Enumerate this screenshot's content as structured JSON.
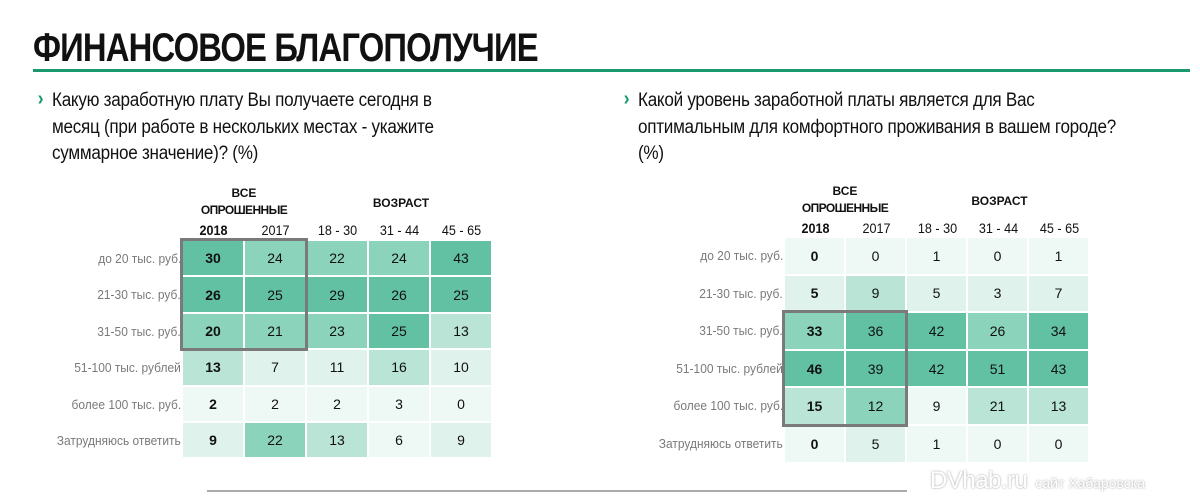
{
  "title": "ФИНАНСОВОЕ БЛАГОПОЛУЧИЕ",
  "accent": "#1a9a6c",
  "shade_colors": [
    "#eef8f4",
    "#dff2ec",
    "#b9e4d6",
    "#8bd3bb",
    "#62c1a3"
  ],
  "tables": [
    {
      "question": [
        "Какую заработную плату Вы получаете сегодня в",
        "месяц (при работе в нескольких местах - укажите",
        "суммарное значение)? (%)"
      ],
      "group_all": [
        "ВСЕ",
        "ОПРОШЕННЫЕ"
      ],
      "group_age": "ВОЗРАСТ",
      "columns": [
        "2018",
        "2017",
        "18 - 30",
        "31 - 44",
        "45 - 65"
      ],
      "rows": [
        {
          "label": "до 20 тыс. руб.",
          "values": [
            "30",
            "24",
            "22",
            "24",
            "43"
          ],
          "shade": [
            4,
            3,
            3,
            3,
            4
          ]
        },
        {
          "label": "21-30 тыс. руб.",
          "values": [
            "26",
            "25",
            "29",
            "26",
            "25"
          ],
          "shade": [
            4,
            4,
            4,
            4,
            4
          ]
        },
        {
          "label": "31-50 тыс. руб.",
          "values": [
            "20",
            "21",
            "23",
            "25",
            "13"
          ],
          "shade": [
            3,
            3,
            3,
            4,
            2
          ]
        },
        {
          "label": "51-100 тыс. рублей",
          "values": [
            "13",
            "7",
            "11",
            "16",
            "10"
          ],
          "shade": [
            2,
            1,
            1,
            2,
            1
          ]
        },
        {
          "label": "более 100 тыс. руб.",
          "values": [
            "2",
            "2",
            "2",
            "3",
            "0"
          ],
          "shade": [
            0,
            0,
            0,
            0,
            0
          ]
        },
        {
          "label": "Затрудняюсь ответить",
          "values": [
            "9",
            "22",
            "13",
            "6",
            "9"
          ],
          "shade": [
            1,
            3,
            2,
            0,
            1
          ]
        }
      ],
      "highlight_rows": [
        0,
        2
      ]
    },
    {
      "question": [
        "Какой уровень заработной платы является для Вас",
        "оптимальным для комфортного проживания в вашем городе?",
        "(%)"
      ],
      "group_all": [
        "ВСЕ",
        "ОПРОШЕННЫЕ"
      ],
      "group_age": "ВОЗРАСТ",
      "columns": [
        "2018",
        "2017",
        "18 - 30",
        "31 - 44",
        "45 - 65"
      ],
      "rows": [
        {
          "label": "до 20 тыс. руб.",
          "values": [
            "0",
            "0",
            "1",
            "0",
            "1"
          ],
          "shade": [
            0,
            0,
            0,
            0,
            0
          ]
        },
        {
          "label": "21-30 тыс. руб.",
          "values": [
            "5",
            "9",
            "5",
            "3",
            "7"
          ],
          "shade": [
            1,
            2,
            1,
            1,
            1
          ]
        },
        {
          "label": "31-50 тыс. руб.",
          "values": [
            "33",
            "36",
            "42",
            "26",
            "34"
          ],
          "shade": [
            3,
            4,
            4,
            3,
            4
          ]
        },
        {
          "label": "51-100 тыс. рублей",
          "values": [
            "46",
            "39",
            "42",
            "51",
            "43"
          ],
          "shade": [
            4,
            4,
            4,
            4,
            4
          ]
        },
        {
          "label": "более 100 тыс. руб.",
          "values": [
            "15",
            "12",
            "9",
            "21",
            "13"
          ],
          "shade": [
            2,
            3,
            0,
            2,
            2
          ]
        },
        {
          "label": "Затрудняюсь ответить",
          "values": [
            "0",
            "5",
            "1",
            "0",
            "0"
          ],
          "shade": [
            0,
            1,
            0,
            0,
            0
          ]
        }
      ],
      "highlight_rows": [
        2,
        4
      ]
    }
  ],
  "watermark": {
    "brand": "DVhab.ru",
    "tagline": "сайт Хабаровска"
  }
}
